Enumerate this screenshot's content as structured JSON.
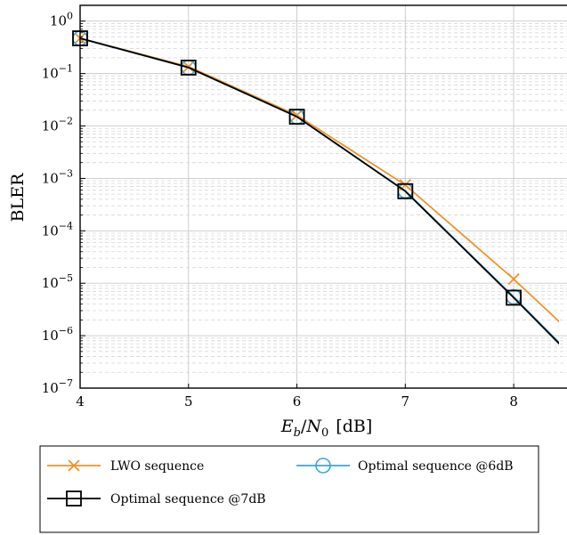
{
  "chart_data": {
    "type": "line",
    "xlabel": "E_b/N_0 [dB]",
    "xlabel_parts": {
      "e": "E",
      "b": "b",
      "n": "N",
      "zero": "0",
      "unit": "[dB]"
    },
    "ylabel": "BLER",
    "x_ticks": [
      4,
      5,
      6,
      7,
      8
    ],
    "y_ticks": [
      {
        "value": 1,
        "base": "10",
        "exp": "0"
      },
      {
        "value": 0.1,
        "base": "10",
        "exp": "−1"
      },
      {
        "value": 0.01,
        "base": "10",
        "exp": "−2"
      },
      {
        "value": 0.001,
        "base": "10",
        "exp": "−3"
      },
      {
        "value": 0.0001,
        "base": "10",
        "exp": "−4"
      },
      {
        "value": 1e-05,
        "base": "10",
        "exp": "−5"
      },
      {
        "value": 1e-06,
        "base": "10",
        "exp": "−6"
      },
      {
        "value": 1e-07,
        "base": "10",
        "exp": "−7"
      }
    ],
    "xlim": [
      4,
      8.5
    ],
    "ylim": [
      1e-07,
      2
    ],
    "y_scale": "log",
    "grid": true,
    "legend_position": "bottom",
    "series": [
      {
        "name": "LWO sequence",
        "color": "#f0922a",
        "marker": "x",
        "x": [
          4,
          5,
          6,
          7,
          8,
          8.5
        ],
        "y": [
          0.47,
          0.135,
          0.016,
          0.00075,
          1.2e-05,
          1.3e-06
        ]
      },
      {
        "name": "Optimal sequence @6dB",
        "color": "#3aa7d6",
        "marker": "circle",
        "x": [
          4,
          5,
          6,
          7,
          8,
          8.5
        ],
        "y": [
          0.47,
          0.13,
          0.015,
          0.00058,
          5.5e-06,
          5e-07
        ]
      },
      {
        "name": "Optimal sequence @7dB",
        "color": "#000000",
        "marker": "square",
        "x": [
          4,
          5,
          6,
          7,
          8,
          8.5
        ],
        "y": [
          0.47,
          0.13,
          0.015,
          0.00057,
          5.3e-06,
          4.8e-07
        ]
      }
    ]
  }
}
